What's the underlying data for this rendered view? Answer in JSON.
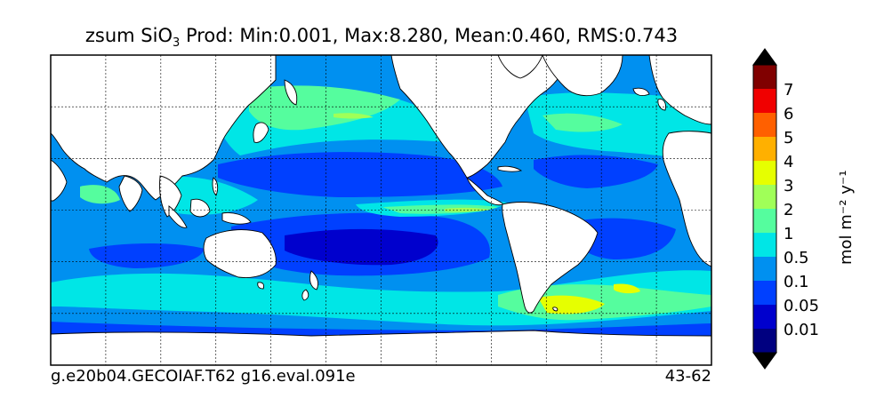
{
  "title": {
    "prefix": "zsum SiO",
    "subscript": "3",
    "rest": " Prod: Min:0.001, Max:8.280, Mean:0.460, RMS:0.743"
  },
  "footer": {
    "left": "g.e20b04.GECOIAF.T62 g16.eval.091e",
    "right": "43-62"
  },
  "colorbar": {
    "label": "mol m⁻² y⁻¹",
    "levels": [
      "0.01",
      "0.05",
      "0.1",
      "0.5",
      "1",
      "2",
      "3",
      "4",
      "5",
      "6",
      "7"
    ],
    "colors": [
      "#000080",
      "#0000cd",
      "#0040ff",
      "#0090f0",
      "#00e6e6",
      "#55fd9e",
      "#a0ff58",
      "#e6ff00",
      "#ffb000",
      "#ff6000",
      "#f00000",
      "#800000"
    ],
    "extend": "both"
  },
  "chart_data": {
    "type": "heatmap",
    "title": "zsum SiO3 Prod: Min:0.001, Max:8.280, Mean:0.460, RMS:0.743",
    "statistics": {
      "min": 0.001,
      "max": 8.28,
      "mean": 0.46,
      "rms": 0.743
    },
    "units": "mol m-2 y-1",
    "contour_levels": [
      0.01,
      0.05,
      0.1,
      0.5,
      1,
      2,
      3,
      4,
      5,
      6,
      7
    ],
    "grid": true,
    "legend": "colorbar right"
  },
  "colors": {
    "land": "#ffffff",
    "coast": "#000000",
    "grid": "#000000"
  }
}
